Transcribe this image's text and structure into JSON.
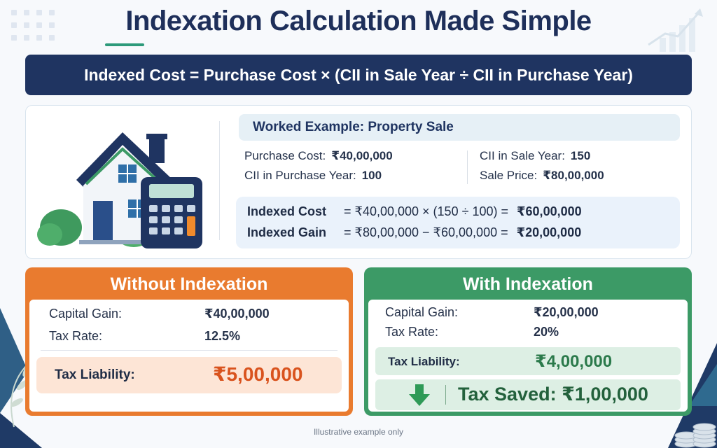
{
  "title": "Indexation Calculation Made Simple",
  "formula": "Indexed Cost = Purchase Cost × (CII in Sale Year ÷ CII in Purchase Year)",
  "example": {
    "heading": "Worked Example: Property Sale",
    "purchase_cost_label": "Purchase Cost:",
    "purchase_cost_value": "₹40,00,000",
    "cii_purchase_label": "CII in Purchase Year:",
    "cii_purchase_value": "100",
    "cii_sale_label": "CII in Sale Year:",
    "cii_sale_value": "150",
    "sale_price_label": "Sale Price:",
    "sale_price_value": "₹80,00,000",
    "indexed_cost_label": "Indexed Cost",
    "indexed_cost_expr": "= ₹40,00,000 × (150 ÷ 100) =",
    "indexed_cost_result": "₹60,00,000",
    "indexed_gain_label": "Indexed Gain",
    "indexed_gain_expr": "= ₹80,00,000 − ₹60,00,000 =",
    "indexed_gain_result": "₹20,00,000"
  },
  "without": {
    "title": "Without Indexation",
    "capital_gain_label": "Capital Gain:",
    "capital_gain_value": "₹40,00,000",
    "tax_rate_label": "Tax Rate:",
    "tax_rate_value": "12.5%",
    "tax_liability_label": "Tax Liability:",
    "tax_liability_value": "₹5,00,000"
  },
  "with": {
    "title": "With Indexation",
    "capital_gain_label": "Capital Gain:",
    "capital_gain_value": "₹20,00,000",
    "tax_rate_label": "Tax Rate:",
    "tax_rate_value": "20%",
    "tax_liability_label": "Tax Liability:",
    "tax_liability_value": "₹4,00,000",
    "tax_saved": "Tax Saved: ₹1,00,000"
  },
  "footnote": "Illustrative example only",
  "colors": {
    "navy": "#1f3461",
    "orange": "#e97b2f",
    "green": "#3c9a66",
    "accent_teal": "#2d9a7a",
    "tax_red": "#d9531e"
  },
  "icons": [
    "house-icon",
    "calculator-icon",
    "down-arrow-icon",
    "growth-chart-icon",
    "coin-stack-icon",
    "leaf-icon"
  ]
}
